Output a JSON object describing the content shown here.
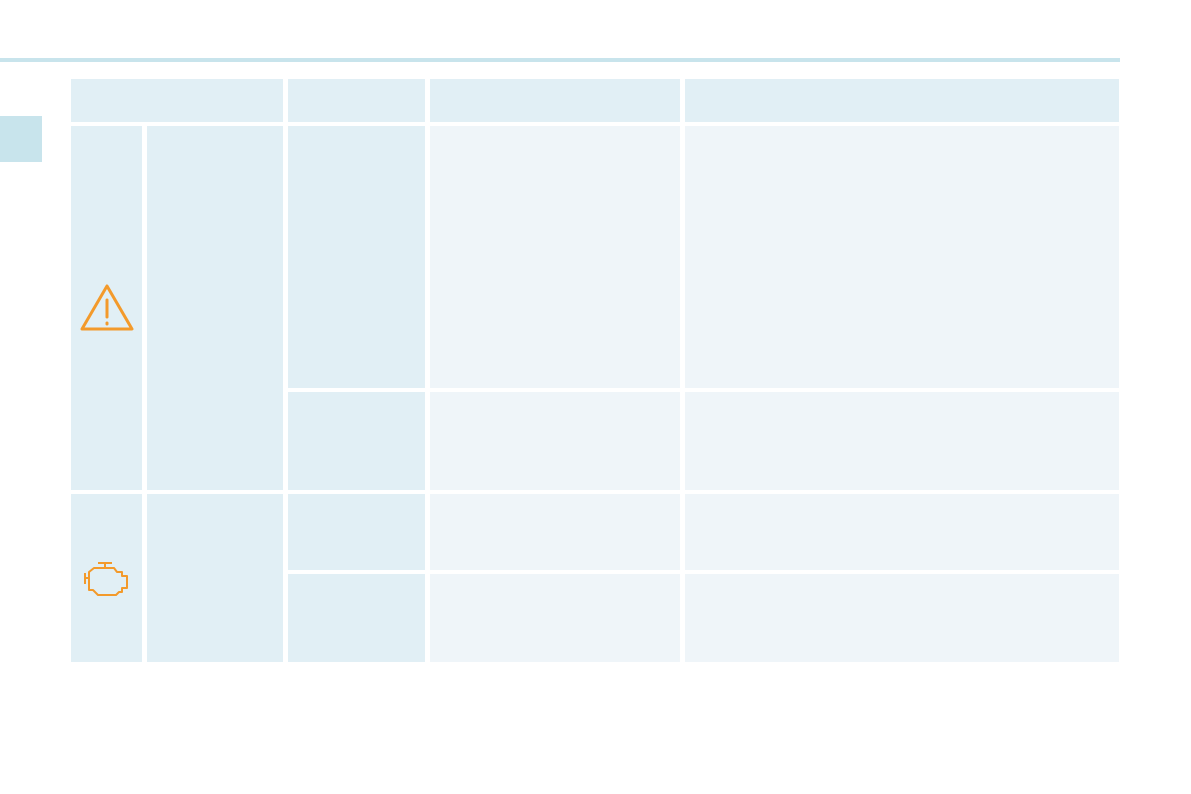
{
  "colors": {
    "accent_line": "#c8e4ec",
    "header_cell": "#e1eff5",
    "body_cell": "#eff5f9",
    "icon": "#f39a2b"
  },
  "table": {
    "header": [
      "",
      "",
      "",
      ""
    ],
    "groups": [
      {
        "icon": "warning-triangle-icon",
        "rows": 2
      },
      {
        "icon": "engine-check-icon",
        "rows": 2
      }
    ]
  }
}
